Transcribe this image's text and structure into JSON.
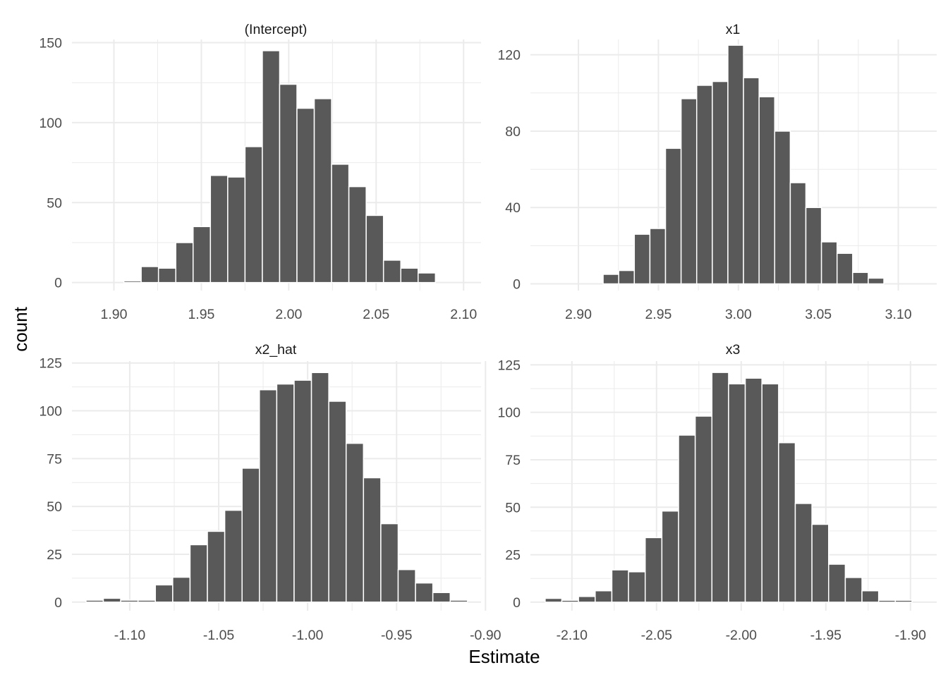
{
  "figure": {
    "xlabel": "Estimate",
    "ylabel": "count"
  },
  "colors": {
    "bar": "#595959",
    "grid": "#ebebeb",
    "text": "#4d4d4d",
    "title": "#1a1a1a"
  },
  "chart_data": [
    {
      "type": "bar",
      "title": "(Intercept)",
      "xlim": [
        1.876,
        2.11
      ],
      "ylim": [
        -5,
        152
      ],
      "xticks": [
        1.9,
        1.95,
        2.0,
        2.05,
        2.1
      ],
      "xtick_labels": [
        "1.90",
        "1.95",
        "2.00",
        "2.05",
        "2.10"
      ],
      "yticks": [
        0,
        50,
        100,
        150
      ],
      "ytick_labels": [
        "0",
        "50",
        "100",
        "150"
      ],
      "bin_start": 1.8958,
      "bin_width": 0.0099,
      "values": [
        0,
        1,
        10,
        9,
        25,
        35,
        67,
        66,
        85,
        145,
        124,
        109,
        115,
        74,
        60,
        42,
        14,
        9,
        6
      ]
    },
    {
      "type": "bar",
      "title": "x1",
      "xlim": [
        2.87,
        3.124
      ],
      "ylim": [
        -3.5,
        128
      ],
      "xticks": [
        2.9,
        2.95,
        3.0,
        3.05,
        3.1
      ],
      "xtick_labels": [
        "2.90",
        "2.95",
        "3.00",
        "3.05",
        "3.10"
      ],
      "yticks": [
        0,
        40,
        80,
        120
      ],
      "ytick_labels": [
        "0",
        "40",
        "80",
        "120"
      ],
      "bin_start": 2.8862,
      "bin_width": 0.00975,
      "values": [
        0,
        0,
        0,
        5,
        7,
        26,
        29,
        71,
        97,
        104,
        106,
        125,
        108,
        98,
        80,
        53,
        40,
        22,
        16,
        6,
        3
      ]
    },
    {
      "type": "bar",
      "title": "x2_hat",
      "xlim": [
        -1.1325,
        -0.9025
      ],
      "ylim": [
        -4.5,
        126
      ],
      "xticks": [
        -1.1,
        -1.05,
        -1.0,
        -0.95,
        -0.9
      ],
      "xtick_labels": [
        "-1.10",
        "-1.05",
        "-1.00",
        "-0.95",
        "-0.90"
      ],
      "yticks": [
        0,
        25,
        50,
        75,
        100,
        125
      ],
      "ytick_labels": [
        "0",
        "25",
        "50",
        "75",
        "100",
        "125"
      ],
      "bin_start": -1.1246,
      "bin_width": 0.00975,
      "values": [
        1,
        2,
        1,
        1,
        9,
        13,
        30,
        37,
        48,
        70,
        111,
        114,
        116,
        120,
        105,
        83,
        65,
        41,
        17,
        10,
        5,
        1
      ]
    },
    {
      "type": "bar",
      "title": "x3",
      "xlim": [
        -2.1245,
        -1.8845
      ],
      "ylim": [
        -4.5,
        127
      ],
      "xticks": [
        -2.1,
        -2.05,
        -2.0,
        -1.95,
        -1.9
      ],
      "xtick_labels": [
        "-2.10",
        "-2.05",
        "-2.00",
        "-1.95",
        "-1.90"
      ],
      "yticks": [
        0,
        25,
        50,
        75,
        100,
        125
      ],
      "ytick_labels": [
        "0",
        "25",
        "50",
        "75",
        "100",
        "125"
      ],
      "bin_start": -2.1158,
      "bin_width": 0.00985,
      "values": [
        2,
        1,
        3,
        6,
        17,
        16,
        34,
        48,
        88,
        98,
        121,
        115,
        118,
        115,
        84,
        52,
        41,
        20,
        13,
        6,
        1,
        1
      ]
    }
  ]
}
